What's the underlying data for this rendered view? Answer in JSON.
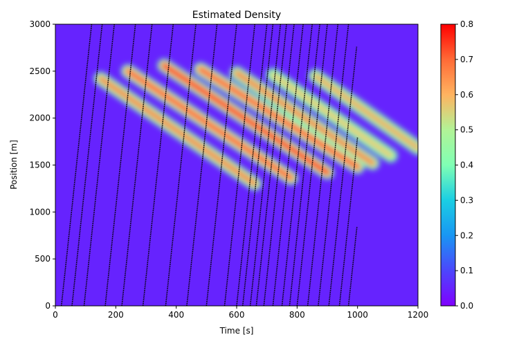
{
  "chart_data": {
    "type": "heatmap",
    "title": "Estimated Density",
    "xlabel": "Time [s]",
    "ylabel": "Position [m]",
    "xlim": [
      0,
      1200
    ],
    "ylim": [
      0,
      3000
    ],
    "xticks": [
      0,
      200,
      400,
      600,
      800,
      1000,
      1200
    ],
    "yticks": [
      0,
      500,
      1000,
      1500,
      2000,
      2500,
      3000
    ],
    "colorbar": {
      "colormap": "rainbow",
      "range": [
        0,
        0.8
      ],
      "ticks": [
        "0.0",
        "0.1",
        "0.2",
        "0.3",
        "0.4",
        "0.5",
        "0.6",
        "0.7",
        "0.8"
      ]
    },
    "trajectory_color": "#000000",
    "trajectories": {
      "entry_times": [
        20,
        55,
        95,
        165,
        220,
        290,
        365,
        435,
        500,
        560,
        600,
        620,
        645,
        665,
        690,
        720,
        750,
        775,
        800,
        835,
        870,
        905,
        940,
        970
      ],
      "free_flow_speed_mps": 30,
      "end_time": 1000
    },
    "background_density": 0.05,
    "congestion_bands": [
      {
        "t_start": 150,
        "pos_start": 2420,
        "t_end": 660,
        "pos_end": 1300,
        "peak_density": 0.7
      },
      {
        "t_start": 240,
        "pos_start": 2500,
        "t_end": 780,
        "pos_end": 1360,
        "peak_density": 0.75
      },
      {
        "t_start": 360,
        "pos_start": 2560,
        "t_end": 900,
        "pos_end": 1420,
        "peak_density": 0.8
      },
      {
        "t_start": 480,
        "pos_start": 2520,
        "t_end": 1000,
        "pos_end": 1480,
        "peak_density": 0.75
      },
      {
        "t_start": 600,
        "pos_start": 2480,
        "t_end": 1050,
        "pos_end": 1520,
        "peak_density": 0.7
      },
      {
        "t_start": 720,
        "pos_start": 2460,
        "t_end": 1110,
        "pos_end": 1600,
        "peak_density": 0.6
      },
      {
        "t_start": 860,
        "pos_start": 2450,
        "t_end": 1200,
        "pos_end": 1680,
        "peak_density": 0.65
      }
    ]
  },
  "colors": {
    "background": "#ffffff",
    "axis": "#000000"
  }
}
